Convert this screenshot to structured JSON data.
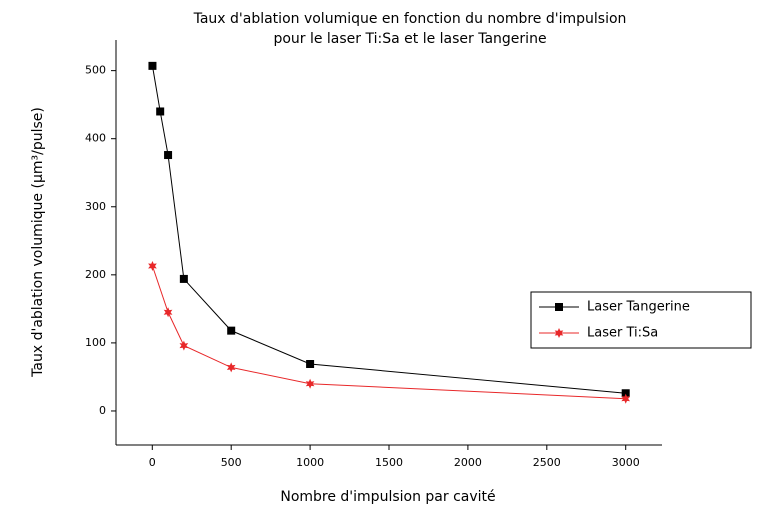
{
  "chart_data": {
    "type": "line",
    "title": [
      "Taux d'ablation volumique en fonction du nombre d'impulsion",
      "pour le laser Ti:Sa et le laser Tangerine"
    ],
    "x_label": "Nombre d'impulsion par cavité",
    "y_label": "Taux d'ablation volumique (µm³/pulse)",
    "series": [
      {
        "name": "Laser Tangerine",
        "color": "#000000",
        "marker": "square",
        "x": [
          1,
          50,
          100,
          200,
          500,
          1000,
          3000
        ],
        "values": [
          507,
          440,
          376,
          194,
          118,
          69,
          26
        ]
      },
      {
        "name": "Laser Ti:Sa",
        "color": "#e8282a",
        "marker": "star",
        "x": [
          1,
          100,
          200,
          500,
          1000,
          3000
        ],
        "values": [
          213,
          145,
          96,
          64,
          40,
          18
        ]
      }
    ],
    "xlim": [
      -230,
      3230
    ],
    "xticks": [
      0,
      500,
      1000,
      1500,
      2000,
      2500,
      3000
    ],
    "ylim": [
      -50,
      545
    ],
    "yticks": [
      0,
      100,
      200,
      300,
      400,
      500
    ],
    "grid": false,
    "legend": "right"
  }
}
